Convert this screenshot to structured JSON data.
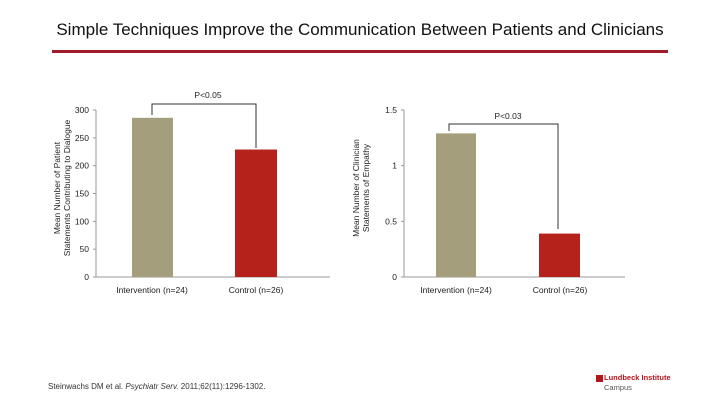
{
  "slide": {
    "title": "Simple Techniques Improve the Communication Between Patients and Clinicians",
    "citation_authors": "Steinwachs DM et al. ",
    "citation_journal": "Psychiatr Serv.",
    "citation_rest": " 2011;62(11):1296-1302.",
    "logo_name": "Lundbeck Institute",
    "logo_sub": "Campus"
  },
  "colors": {
    "intervention": "#a59e7c",
    "control": "#b5221b",
    "title_rule": "#a01c2a"
  },
  "chart_data": [
    {
      "type": "bar",
      "categories": [
        "Intervention (n=24)",
        "Control (n=26)"
      ],
      "values": [
        286,
        229
      ],
      "ylabel": "Mean Number of Patient Statements Contributing to Dialogue",
      "ylim": [
        0,
        300
      ],
      "yticks": [
        0,
        50,
        100,
        150,
        200,
        250,
        300
      ],
      "ytick_labels": [
        "0",
        "50",
        "100",
        "150",
        "200",
        "250",
        "300"
      ],
      "annotation": "P<0.05",
      "grid": false
    },
    {
      "type": "bar",
      "categories": [
        "Intervention (n=24)",
        "Control (n=26)"
      ],
      "values": [
        1.29,
        0.39
      ],
      "ylabel": "Mean Number of Clinician Statements of Empathy",
      "ylim": [
        0,
        1.5
      ],
      "yticks": [
        0,
        0.5,
        1,
        1.5
      ],
      "ytick_labels": [
        "0",
        "0.5",
        "1",
        "1.5"
      ],
      "annotation": "P<0.03",
      "grid": false
    }
  ]
}
